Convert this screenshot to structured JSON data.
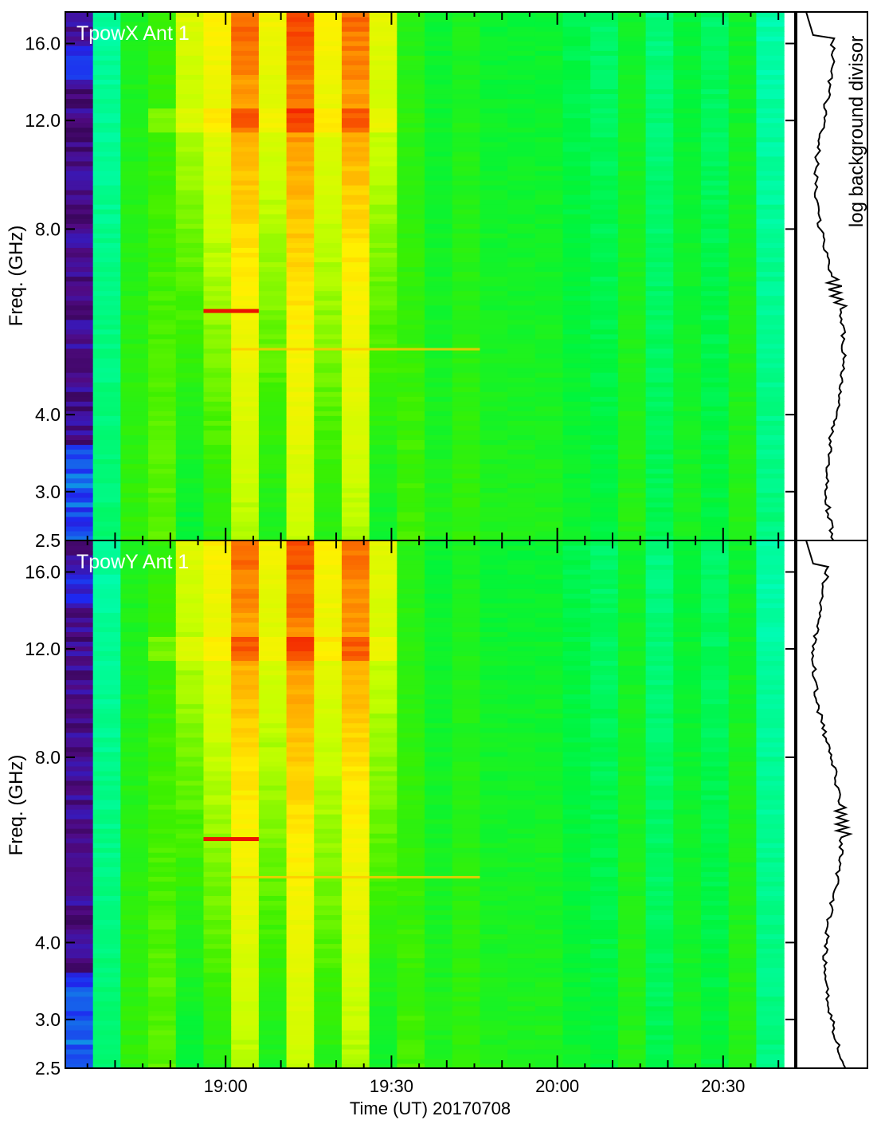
{
  "chart_data": [
    {
      "type": "heatmap",
      "title": "TpowX Ant 1",
      "xlabel": "",
      "ylabel": "Freq. (GHz)",
      "y_scale": "log",
      "ylim": [
        2.5,
        18.0
      ],
      "xlim": [
        "18:31",
        "20:43"
      ],
      "y_ticks": [
        "2.5",
        "3.0",
        "4.0",
        "8.0",
        "12.0",
        "16.0"
      ],
      "x_ticks": [
        "19:00",
        "19:30",
        "20:00",
        "20:30"
      ],
      "colormap": "rainbow",
      "time_columns": [
        "18:31",
        "18:36",
        "18:41",
        "18:46",
        "18:51",
        "18:56",
        "19:01",
        "19:06",
        "19:11",
        "19:16",
        "19:21",
        "19:26",
        "19:31",
        "19:36",
        "19:41",
        "19:46",
        "19:51",
        "19:56",
        "20:01",
        "20:06",
        "20:11",
        "20:16",
        "20:21",
        "20:26",
        "20:31",
        "20:36"
      ],
      "column_level": [
        0.05,
        0.45,
        0.58,
        0.62,
        0.66,
        0.72,
        0.84,
        0.7,
        0.86,
        0.72,
        0.84,
        0.68,
        0.6,
        0.55,
        0.58,
        0.55,
        0.55,
        0.55,
        0.52,
        0.5,
        0.56,
        0.48,
        0.54,
        0.5,
        0.56,
        0.44
      ],
      "features": [
        {
          "label": "narrowband emission",
          "freq_ghz": 5.9,
          "time_range": [
            "18:56",
            "19:06"
          ]
        },
        {
          "label": "narrowband emission",
          "freq_ghz": 5.1,
          "time_range": [
            "19:01",
            "19:46"
          ]
        }
      ],
      "side_panel": {
        "label": "log background divisor"
      }
    },
    {
      "type": "heatmap",
      "title": "TpowY Ant 1",
      "xlabel": "Time (UT) 20170708",
      "ylabel": "Freq. (GHz)",
      "y_scale": "log",
      "ylim": [
        2.5,
        18.0
      ],
      "xlim": [
        "18:31",
        "20:43"
      ],
      "y_ticks": [
        "2.5",
        "3.0",
        "4.0",
        "8.0",
        "12.0",
        "16.0"
      ],
      "x_ticks": [
        "19:00",
        "19:30",
        "20:00",
        "20:30"
      ],
      "colormap": "rainbow",
      "time_columns": [
        "18:31",
        "18:36",
        "18:41",
        "18:46",
        "18:51",
        "18:56",
        "19:01",
        "19:06",
        "19:11",
        "19:16",
        "19:21",
        "19:26",
        "19:31",
        "19:36",
        "19:41",
        "19:46",
        "19:51",
        "19:56",
        "20:01",
        "20:06",
        "20:11",
        "20:16",
        "20:21",
        "20:26",
        "20:31",
        "20:36"
      ],
      "column_level": [
        0.05,
        0.45,
        0.58,
        0.62,
        0.66,
        0.72,
        0.84,
        0.7,
        0.86,
        0.72,
        0.84,
        0.68,
        0.6,
        0.55,
        0.58,
        0.55,
        0.55,
        0.55,
        0.52,
        0.5,
        0.56,
        0.48,
        0.54,
        0.5,
        0.56,
        0.44
      ],
      "features": [
        {
          "label": "narrowband emission",
          "freq_ghz": 5.9,
          "time_range": [
            "18:56",
            "19:06"
          ]
        },
        {
          "label": "narrowband emission",
          "freq_ghz": 5.1,
          "time_range": [
            "19:01",
            "19:46"
          ]
        }
      ],
      "side_panel": {
        "label": ""
      }
    }
  ]
}
